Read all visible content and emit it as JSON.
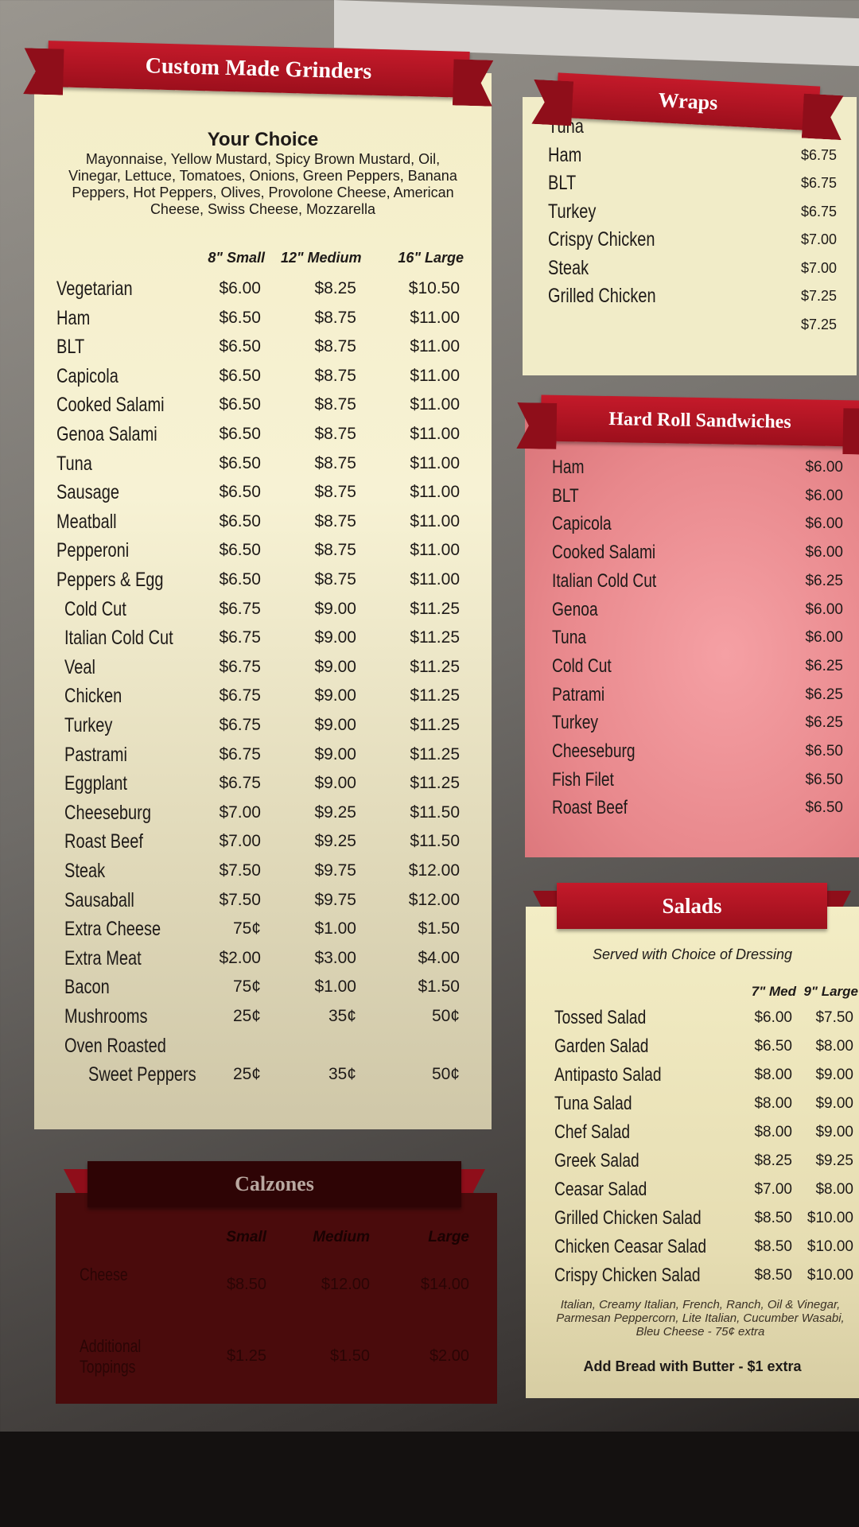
{
  "grinders": {
    "title": "Custom Made Grinders",
    "choice_title": "Your Choice",
    "choice_text": "Mayonnaise, Yellow Mustard, Spicy Brown Mustard, Oil, Vinegar, Lettuce, Tomatoes, Onions, Green Peppers, Banana Peppers, Hot Peppers, Olives, Provolone Cheese, American Cheese, Swiss Cheese, Mozzarella",
    "sizes": [
      "8\" Small",
      "12\" Medium",
      "16\" Large"
    ],
    "items": [
      {
        "name": "Vegetarian",
        "prices": [
          "$6.00",
          "$8.25",
          "$10.50"
        ]
      },
      {
        "name": "Ham",
        "prices": [
          "$6.50",
          "$8.75",
          "$11.00"
        ]
      },
      {
        "name": "BLT",
        "prices": [
          "$6.50",
          "$8.75",
          "$11.00"
        ]
      },
      {
        "name": "Capicola",
        "prices": [
          "$6.50",
          "$8.75",
          "$11.00"
        ]
      },
      {
        "name": "Cooked Salami",
        "prices": [
          "$6.50",
          "$8.75",
          "$11.00"
        ]
      },
      {
        "name": "Genoa Salami",
        "prices": [
          "$6.50",
          "$8.75",
          "$11.00"
        ]
      },
      {
        "name": "Tuna",
        "prices": [
          "$6.50",
          "$8.75",
          "$11.00"
        ]
      },
      {
        "name": "Sausage",
        "prices": [
          "$6.50",
          "$8.75",
          "$11.00"
        ]
      },
      {
        "name": "Meatball",
        "prices": [
          "$6.50",
          "$8.75",
          "$11.00"
        ]
      },
      {
        "name": "Pepperoni",
        "prices": [
          "$6.50",
          "$8.75",
          "$11.00"
        ]
      },
      {
        "name": "Peppers & Egg",
        "prices": [
          "$6.50",
          "$8.75",
          "$11.00"
        ]
      },
      {
        "name": "Cold Cut",
        "prices": [
          "$6.75",
          "$9.00",
          "$11.25"
        ]
      },
      {
        "name": "Italian Cold Cut",
        "prices": [
          "$6.75",
          "$9.00",
          "$11.25"
        ]
      },
      {
        "name": "Veal",
        "prices": [
          "$6.75",
          "$9.00",
          "$11.25"
        ]
      },
      {
        "name": "Chicken",
        "prices": [
          "$6.75",
          "$9.00",
          "$11.25"
        ]
      },
      {
        "name": "Turkey",
        "prices": [
          "$6.75",
          "$9.00",
          "$11.25"
        ]
      },
      {
        "name": "Pastrami",
        "prices": [
          "$6.75",
          "$9.00",
          "$11.25"
        ]
      },
      {
        "name": "Eggplant",
        "prices": [
          "$6.75",
          "$9.00",
          "$11.25"
        ]
      },
      {
        "name": "Cheeseburg",
        "prices": [
          "$7.00",
          "$9.25",
          "$11.50"
        ]
      },
      {
        "name": "Roast Beef",
        "prices": [
          "$7.00",
          "$9.25",
          "$11.50"
        ]
      },
      {
        "name": "Steak",
        "prices": [
          "$7.50",
          "$9.75",
          "$12.00"
        ]
      },
      {
        "name": "Sausaball",
        "prices": [
          "$7.50",
          "$9.75",
          "$12.00"
        ]
      },
      {
        "name": "Extra Cheese",
        "prices": [
          "75¢",
          "$1.00",
          "$1.50"
        ]
      },
      {
        "name": "Extra Meat",
        "prices": [
          "$2.00",
          "$3.00",
          "$4.00"
        ]
      },
      {
        "name": "Bacon",
        "prices": [
          "75¢",
          "$1.00",
          "$1.50"
        ]
      },
      {
        "name": "Mushrooms",
        "prices": [
          "25¢",
          "35¢",
          "50¢"
        ]
      },
      {
        "name": "Oven Roasted",
        "prices": []
      },
      {
        "name": "Sweet Peppers",
        "prices": [
          "25¢",
          "35¢",
          "50¢"
        ]
      }
    ]
  },
  "wraps": {
    "title": "Wraps",
    "items": [
      {
        "name": "Tuna",
        "prices": []
      },
      {
        "name": "Ham",
        "prices": [
          "$6.75"
        ]
      },
      {
        "name": "BLT",
        "prices": [
          "$6.75"
        ]
      },
      {
        "name": "Turkey",
        "prices": [
          "$6.75"
        ]
      },
      {
        "name": "Crispy Chicken",
        "prices": [
          "$7.00"
        ]
      },
      {
        "name": "Steak",
        "prices": [
          "$7.00"
        ]
      },
      {
        "name": "Grilled Chicken",
        "prices": [
          "$7.25"
        ]
      },
      {
        "name": "",
        "prices": [
          "$7.25"
        ]
      }
    ]
  },
  "hard_roll": {
    "title": "Hard Roll Sandwiches",
    "items": [
      {
        "name": "Ham",
        "prices": [
          "$6.00"
        ]
      },
      {
        "name": "BLT",
        "prices": [
          "$6.00"
        ]
      },
      {
        "name": "Capicola",
        "prices": [
          "$6.00"
        ]
      },
      {
        "name": "Cooked Salami",
        "prices": [
          "$6.00"
        ]
      },
      {
        "name": "Italian Cold Cut",
        "prices": [
          "$6.25"
        ]
      },
      {
        "name": "Genoa",
        "prices": [
          "$6.00"
        ]
      },
      {
        "name": "Tuna",
        "prices": [
          "$6.00"
        ]
      },
      {
        "name": "Cold Cut",
        "prices": [
          "$6.25"
        ]
      },
      {
        "name": "Patrami",
        "prices": [
          "$6.25"
        ]
      },
      {
        "name": "Turkey",
        "prices": [
          "$6.25"
        ]
      },
      {
        "name": "Cheeseburg",
        "prices": [
          "$6.50"
        ]
      },
      {
        "name": "Fish Filet",
        "prices": [
          "$6.50"
        ]
      },
      {
        "name": "Roast Beef",
        "prices": [
          "$6.50"
        ]
      }
    ]
  },
  "salads": {
    "title": "Salads",
    "subtitle": "Served with Choice of Dressing",
    "sizes": [
      "7\" Med",
      "9\" Large"
    ],
    "items": [
      {
        "name": "Tossed Salad",
        "prices": [
          "$6.00",
          "$7.50"
        ]
      },
      {
        "name": "Garden Salad",
        "prices": [
          "$6.50",
          "$8.00"
        ]
      },
      {
        "name": "Antipasto Salad",
        "prices": [
          "$8.00",
          "$9.00"
        ]
      },
      {
        "name": "Tuna Salad",
        "prices": [
          "$8.00",
          "$9.00"
        ]
      },
      {
        "name": "Chef Salad",
        "prices": [
          "$8.00",
          "$9.00"
        ]
      },
      {
        "name": "Greek Salad",
        "prices": [
          "$8.25",
          "$9.25"
        ]
      },
      {
        "name": "Ceasar Salad",
        "prices": [
          "$7.00",
          "$8.00"
        ]
      },
      {
        "name": "Grilled Chicken Salad",
        "prices": [
          "$8.50",
          "$10.00"
        ]
      },
      {
        "name": "Chicken Ceasar Salad",
        "prices": [
          "$8.50",
          "$10.00"
        ]
      },
      {
        "name": "Crispy Chicken Salad",
        "prices": [
          "$8.50",
          "$10.00"
        ]
      }
    ],
    "dressings": "Italian, Creamy Italian, French, Ranch, Oil & Vinegar, Parmesan Peppercorn, Lite Italian, Cucumber Wasabi, Bleu Cheese - 75¢ extra",
    "bread_note": "Add Bread with Butter - $1 extra"
  },
  "calzones": {
    "title": "Calzones",
    "sizes": [
      "Small",
      "Medium",
      "Large"
    ],
    "items": [
      {
        "name": "Cheese",
        "prices": [
          "$8.50",
          "$12.00",
          "$14.00"
        ]
      },
      {
        "name": "Additional Toppings",
        "prices": [
          "$1.25",
          "$1.50",
          "$2.00"
        ]
      }
    ]
  }
}
